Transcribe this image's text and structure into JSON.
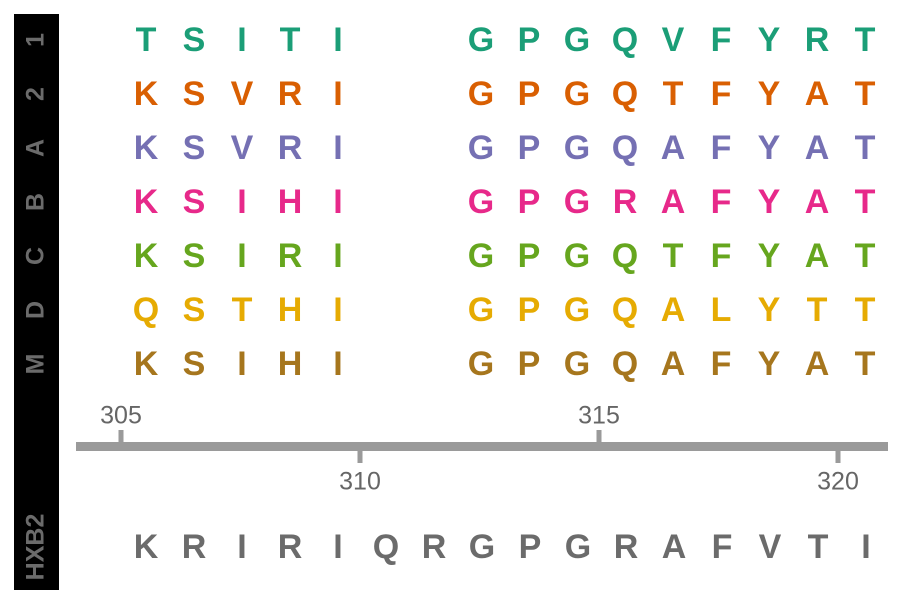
{
  "colors": {
    "sidebar_bg": "#000000",
    "sidebar_text": "#6b6b6b",
    "axis": "#9a9a9a",
    "tick_label": "#666666",
    "reference": "#6b6b6b"
  },
  "sequences": [
    {
      "label": "1",
      "color": "#1b9e77",
      "left": [
        "T",
        "S",
        "I",
        "T",
        "I"
      ],
      "right": [
        "G",
        "P",
        "G",
        "Q",
        "V",
        "F",
        "Y",
        "R",
        "T"
      ]
    },
    {
      "label": "2",
      "color": "#d95f02",
      "left": [
        "K",
        "S",
        "V",
        "R",
        "I"
      ],
      "right": [
        "G",
        "P",
        "G",
        "Q",
        "T",
        "F",
        "Y",
        "A",
        "T"
      ]
    },
    {
      "label": "A",
      "color": "#7570b3",
      "left": [
        "K",
        "S",
        "V",
        "R",
        "I"
      ],
      "right": [
        "G",
        "P",
        "G",
        "Q",
        "A",
        "F",
        "Y",
        "A",
        "T"
      ]
    },
    {
      "label": "B",
      "color": "#e7298a",
      "left": [
        "K",
        "S",
        "I",
        "H",
        "I"
      ],
      "right": [
        "G",
        "P",
        "G",
        "R",
        "A",
        "F",
        "Y",
        "A",
        "T"
      ]
    },
    {
      "label": "C",
      "color": "#66a61e",
      "left": [
        "K",
        "S",
        "I",
        "R",
        "I"
      ],
      "right": [
        "G",
        "P",
        "G",
        "Q",
        "T",
        "F",
        "Y",
        "A",
        "T"
      ]
    },
    {
      "label": "D",
      "color": "#e6ab02",
      "left": [
        "Q",
        "S",
        "T",
        "H",
        "I"
      ],
      "right": [
        "G",
        "P",
        "G",
        "Q",
        "A",
        "L",
        "Y",
        "T",
        "T"
      ]
    },
    {
      "label": "M",
      "color": "#a6761d",
      "left": [
        "K",
        "S",
        "I",
        "H",
        "I"
      ],
      "right": [
        "G",
        "P",
        "G",
        "Q",
        "A",
        "F",
        "Y",
        "A",
        "T"
      ]
    }
  ],
  "axis": {
    "ticks_top": [
      "305",
      "315"
    ],
    "ticks_bottom": [
      "310",
      "320"
    ]
  },
  "reference": {
    "label": "HXB2",
    "residues": [
      "K",
      "R",
      "I",
      "R",
      "I",
      "Q",
      "R",
      "G",
      "P",
      "G",
      "R",
      "A",
      "F",
      "V",
      "T",
      "I"
    ]
  }
}
